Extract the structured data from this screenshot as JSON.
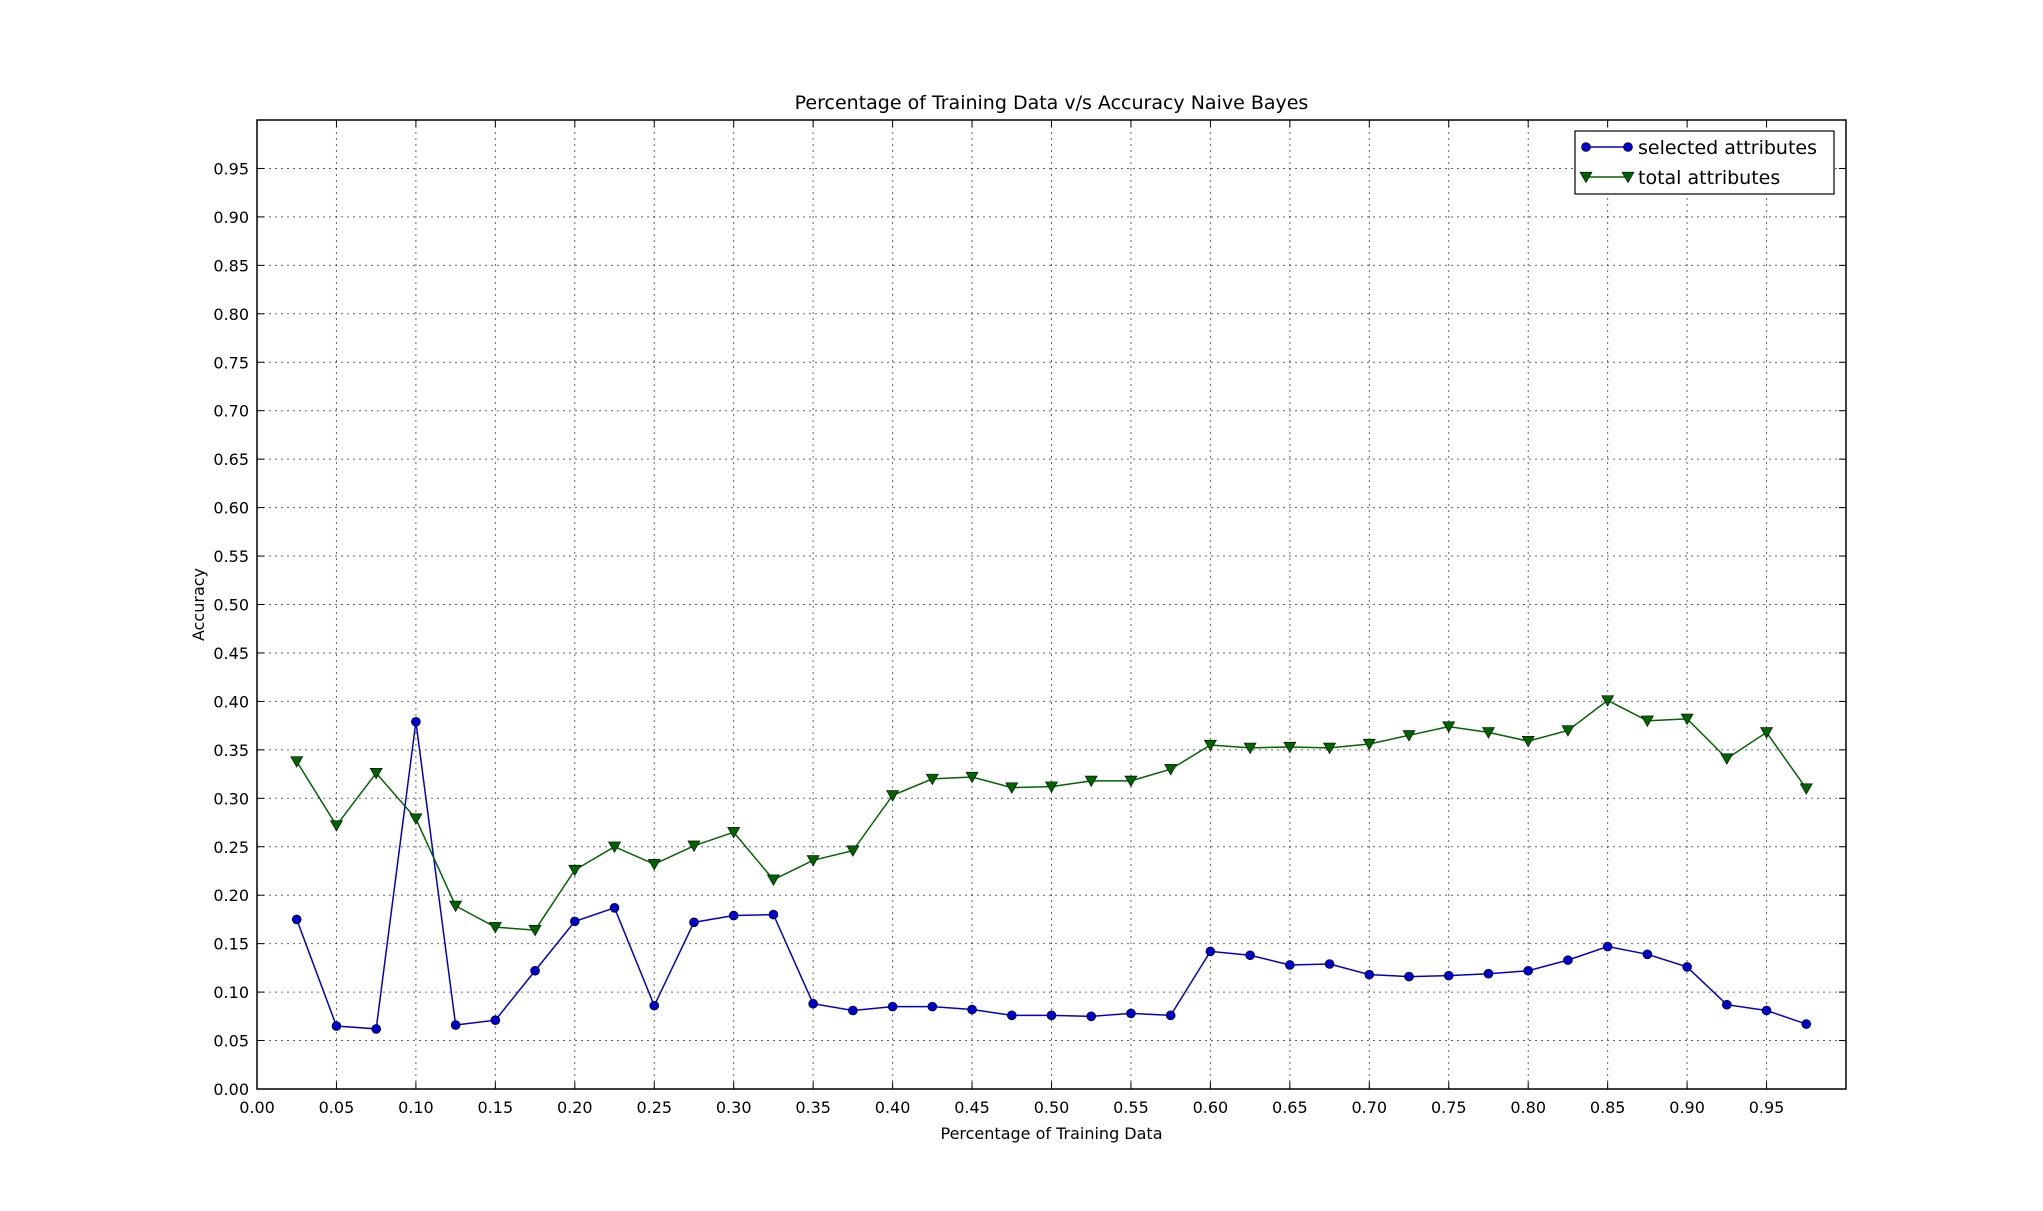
{
  "chart_data": {
    "type": "line",
    "title": "Percentage of Training Data v/s Accuracy Naive Bayes",
    "xlabel": "Percentage of Training Data",
    "ylabel": "Accuracy",
    "xlim": [
      0.0,
      1.0
    ],
    "ylim": [
      0.0,
      1.0
    ],
    "x_ticks": [
      "0.00",
      "0.05",
      "0.10",
      "0.15",
      "0.20",
      "0.25",
      "0.30",
      "0.35",
      "0.40",
      "0.45",
      "0.50",
      "0.55",
      "0.60",
      "0.65",
      "0.70",
      "0.75",
      "0.80",
      "0.85",
      "0.90",
      "0.95"
    ],
    "y_ticks": [
      "0.00",
      "0.05",
      "0.10",
      "0.15",
      "0.20",
      "0.25",
      "0.30",
      "0.35",
      "0.40",
      "0.45",
      "0.50",
      "0.55",
      "0.60",
      "0.65",
      "0.70",
      "0.75",
      "0.80",
      "0.85",
      "0.90",
      "0.95"
    ],
    "grid": true,
    "legend_position": "top-right",
    "x": [
      0.025,
      0.05,
      0.075,
      0.1,
      0.125,
      0.15,
      0.175,
      0.2,
      0.225,
      0.25,
      0.275,
      0.3,
      0.325,
      0.35,
      0.375,
      0.4,
      0.425,
      0.45,
      0.475,
      0.5,
      0.525,
      0.55,
      0.575,
      0.6,
      0.625,
      0.65,
      0.675,
      0.7,
      0.725,
      0.75,
      0.775,
      0.8,
      0.825,
      0.85,
      0.875,
      0.9,
      0.925,
      0.95,
      0.975
    ],
    "series": [
      {
        "name": "selected attributes",
        "color": "#0000cc",
        "marker": "circle",
        "values": [
          0.175,
          0.065,
          0.062,
          0.379,
          0.066,
          0.071,
          0.122,
          0.173,
          0.187,
          0.086,
          0.172,
          0.179,
          0.18,
          0.088,
          0.081,
          0.085,
          0.085,
          0.082,
          0.076,
          0.076,
          0.075,
          0.078,
          0.076,
          0.142,
          0.138,
          0.128,
          0.129,
          0.118,
          0.116,
          0.117,
          0.119,
          0.122,
          0.133,
          0.147,
          0.139,
          0.126,
          0.087,
          0.081,
          0.067
        ]
      },
      {
        "name": "total attributes",
        "color": "#006400",
        "marker": "triangle-down",
        "values": [
          0.338,
          0.272,
          0.326,
          0.279,
          0.189,
          0.167,
          0.164,
          0.226,
          0.25,
          0.232,
          0.251,
          0.265,
          0.216,
          0.236,
          0.246,
          0.303,
          0.32,
          0.322,
          0.311,
          0.312,
          0.318,
          0.318,
          0.33,
          0.355,
          0.352,
          0.353,
          0.352,
          0.356,
          0.365,
          0.374,
          0.368,
          0.359,
          0.37,
          0.401,
          0.38,
          0.382,
          0.341,
          0.368,
          0.31
        ]
      }
    ]
  }
}
